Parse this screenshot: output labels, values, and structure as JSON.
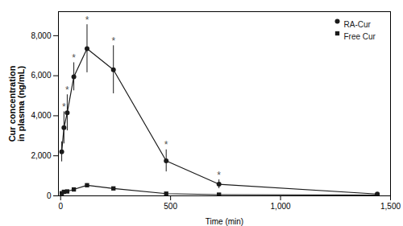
{
  "chart_data": {
    "type": "line",
    "xlabel": "Time (min)",
    "ylabel": "Cur concentration\nin plasma (ng/mL)",
    "x": [
      5,
      15,
      30,
      60,
      120,
      240,
      480,
      720,
      1440
    ],
    "series": [
      {
        "name": "RA-Cur",
        "color": "#1a1a1a",
        "marker": "circle",
        "line_style": "solid",
        "values": [
          2200,
          3400,
          4150,
          5950,
          7350,
          6300,
          1750,
          580,
          90
        ],
        "yerr": [
          500,
          800,
          900,
          700,
          1200,
          1200,
          550,
          220,
          50
        ]
      },
      {
        "name": "Free Cur",
        "color": "#1a1a1a",
        "marker": "square",
        "line_style": "solid",
        "values": [
          130,
          200,
          220,
          320,
          530,
          370,
          110,
          60,
          40
        ],
        "yerr": [
          30,
          40,
          50,
          70,
          80,
          70,
          25,
          20,
          15
        ]
      }
    ],
    "annotations": [
      {
        "text": "*",
        "x": 15,
        "y": 4280
      },
      {
        "text": "*",
        "x": 30,
        "y": 5130
      },
      {
        "text": "*",
        "x": 60,
        "y": 6730
      },
      {
        "text": "*",
        "x": 120,
        "y": 8630
      },
      {
        "text": "*",
        "x": 240,
        "y": 7580
      },
      {
        "text": "*",
        "x": 480,
        "y": 2380
      },
      {
        "text": "*",
        "x": 720,
        "y": 880
      }
    ],
    "xlim": [
      -10,
      1500
    ],
    "ylim": [
      0,
      9200
    ],
    "xticks": [
      0,
      500,
      {
        "value": 1000,
        "label": "1,000"
      },
      {
        "value": 1500,
        "label": "1,500"
      }
    ],
    "yticks": [
      0,
      {
        "value": 2000,
        "label": "2,000"
      },
      {
        "value": 4000,
        "label": "4,000"
      },
      {
        "value": 6000,
        "label": "6,000"
      },
      {
        "value": 8000,
        "label": "8,000"
      }
    ],
    "legend": "upper right",
    "grid": false
  }
}
